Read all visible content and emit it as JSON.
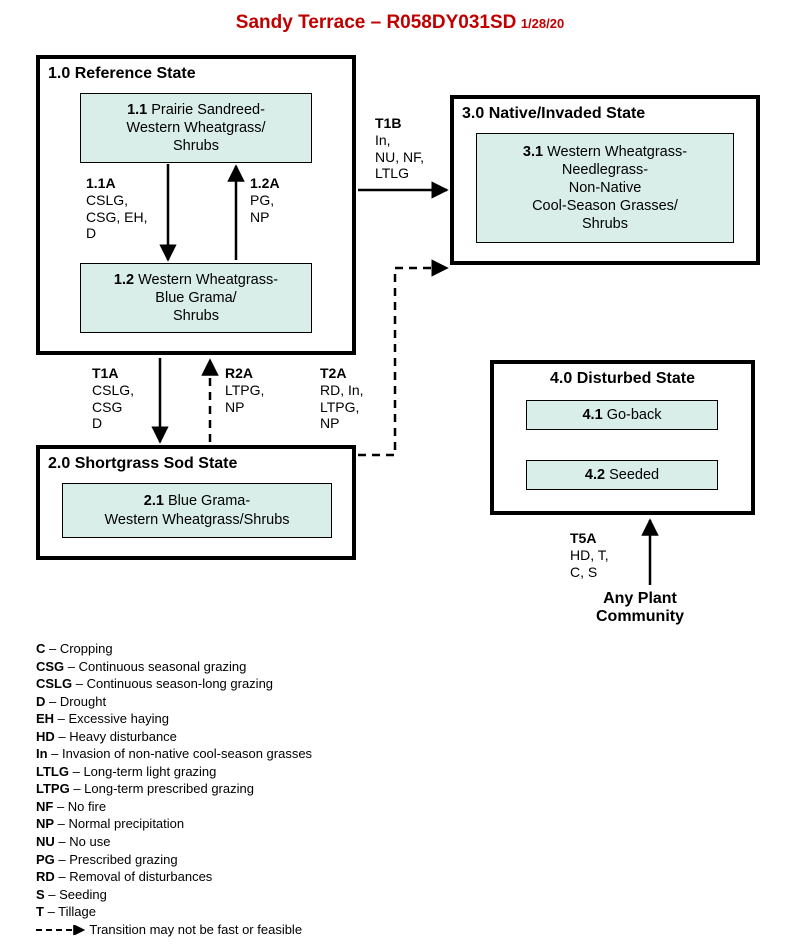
{
  "title_main": "Sandy Terrace – R058DY031SD",
  "title_date": "1/28/20",
  "title_color": "#c00000",
  "states": {
    "s1": {
      "label": "1.0 Reference State"
    },
    "s2": {
      "label": "2.0 Shortgrass Sod State"
    },
    "s3": {
      "label": "3.0 Native/Invaded State"
    },
    "s4": {
      "label": "4.0 Disturbed State"
    }
  },
  "phases": {
    "p11": {
      "num": "1.1",
      "text": "Prairie Sandreed-\nWestern Wheatgrass/\nShrubs"
    },
    "p12": {
      "num": "1.2",
      "text": "Western Wheatgrass-\nBlue Grama/\nShrubs"
    },
    "p21": {
      "num": "2.1",
      "text": "Blue Grama-\nWestern Wheatgrass/Shrubs"
    },
    "p31": {
      "num": "3.1",
      "text": "Western Wheatgrass-\nNeedlegrass-\nNon-Native\nCool-Season Grasses/\nShrubs"
    },
    "p41": {
      "num": "4.1",
      "text": "Go-back"
    },
    "p42": {
      "num": "4.2",
      "text": "Seeded"
    }
  },
  "phase_bg": "#d9eee8",
  "transitions": {
    "t11a": {
      "num": "1.1A",
      "codes": "CSLG,\nCSG, EH,\nD"
    },
    "t12a": {
      "num": "1.2A",
      "codes": "PG,\nNP"
    },
    "t1a": {
      "num": "T1A",
      "codes": "CSLG,\nCSG\nD"
    },
    "r2a": {
      "num": "R2A",
      "codes": "LTPG,\nNP"
    },
    "t1b": {
      "num": "T1B",
      "codes": "In,\nNU, NF,\nLTLG"
    },
    "t2a": {
      "num": "T2A",
      "codes": "RD, In,\nLTPG,\nNP"
    },
    "t5a": {
      "num": "T5A",
      "codes": "HD, T,\nC, S"
    }
  },
  "apc_label": "Any Plant\nCommunity",
  "legend": [
    {
      "code": "C",
      "desc": "Cropping"
    },
    {
      "code": "CSG",
      "desc": "Continuous seasonal grazing"
    },
    {
      "code": "CSLG",
      "desc": "Continuous season-long grazing"
    },
    {
      "code": "D",
      "desc": "Drought"
    },
    {
      "code": "EH",
      "desc": "Excessive haying"
    },
    {
      "code": "HD",
      "desc": "Heavy disturbance"
    },
    {
      "code": "In",
      "desc": "Invasion of non-native cool-season grasses"
    },
    {
      "code": "LTLG",
      "desc": "Long-term light grazing"
    },
    {
      "code": "LTPG",
      "desc": "Long-term prescribed grazing"
    },
    {
      "code": "NF",
      "desc": "No fire"
    },
    {
      "code": "NP",
      "desc": "Normal precipitation"
    },
    {
      "code": "NU",
      "desc": "No use"
    },
    {
      "code": "PG",
      "desc": "Prescribed grazing"
    },
    {
      "code": "RD",
      "desc": "Removal of disturbances"
    },
    {
      "code": "S",
      "desc": "Seeding"
    },
    {
      "code": "T",
      "desc": "Tillage"
    }
  ],
  "legend_dash_note": "Transition may not be fast or feasible",
  "colors": {
    "border": "#000000",
    "bg": "#ffffff"
  }
}
